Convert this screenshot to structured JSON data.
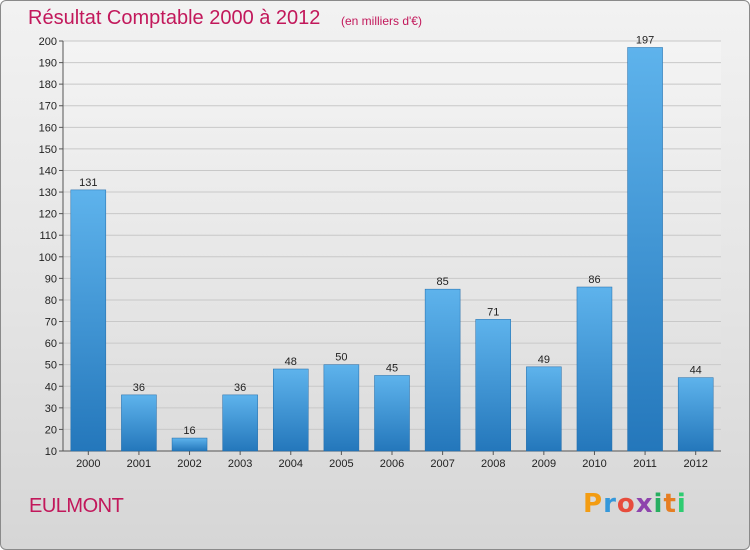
{
  "chart_data": {
    "type": "bar",
    "title": "Résultat Comptable 2000 à 2012",
    "subtitle": "(en milliers d'€)",
    "xlabel": "",
    "ylabel": "",
    "categories": [
      "2000",
      "2001",
      "2002",
      "2003",
      "2004",
      "2005",
      "2006",
      "2007",
      "2008",
      "2009",
      "2010",
      "2011",
      "2012"
    ],
    "values": [
      131,
      36,
      16,
      36,
      48,
      50,
      45,
      85,
      71,
      49,
      86,
      197,
      44
    ],
    "ylim": [
      10,
      200
    ],
    "yticks": [
      10,
      20,
      30,
      40,
      50,
      60,
      70,
      80,
      90,
      100,
      110,
      120,
      130,
      140,
      150,
      160,
      170,
      180,
      190,
      200
    ],
    "grid": true,
    "legend": "none",
    "colors": {
      "bar_light": "#5aaee8",
      "bar_dark": "#2a7cc0",
      "title": "#c2185b"
    }
  },
  "commune": "EULMONT",
  "logo": {
    "text": "Proxiti",
    "letters": [
      {
        "ch": "P",
        "color": "#f39c12"
      },
      {
        "ch": "r",
        "color": "#3498db"
      },
      {
        "ch": "o",
        "color": "#e74c3c"
      },
      {
        "ch": "x",
        "color": "#8e44ad"
      },
      {
        "ch": "i",
        "color": "#27ae60"
      },
      {
        "ch": "t",
        "color": "#e67e22"
      },
      {
        "ch": "i",
        "color": "#2ecc71"
      }
    ]
  }
}
